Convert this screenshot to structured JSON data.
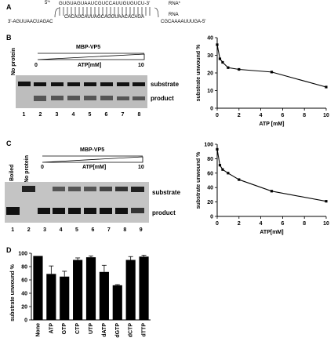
{
  "panel_a": {
    "label": "A",
    "star_marker": "5'*",
    "top_strand": "GUGUAGUAAUCGUCCAUUGUGUCU-3'",
    "top_strand_label": "RNA*",
    "bottom_left": "3'-AGUUAACUAGAC",
    "bottom_middle": "CACAUCAUUAGCAGGUAACACAGA",
    "bottom_right": "CGCAAAAUUUGA-5'",
    "bottom_strand_label": "RNA"
  },
  "panel_b": {
    "label": "B",
    "no_protein": "No protein",
    "protein": "MBP-VP5",
    "scale_start": "0",
    "scale_axis": "ATP[mM]",
    "scale_end": "10",
    "band_top": "substrate",
    "band_bottom": "product",
    "lanes": [
      "1",
      "2",
      "3",
      "4",
      "5",
      "6",
      "7",
      "8"
    ]
  },
  "panel_c": {
    "label": "C",
    "boiled": "Boiled",
    "no_protein": "No protein",
    "protein": "MBP-VP5",
    "scale_start": "0",
    "scale_axis": "ATP[mM]",
    "scale_end": "10",
    "band_top": "substrate",
    "band_bottom": "product",
    "lanes": [
      "1",
      "2",
      "3",
      "4",
      "5",
      "6",
      "7",
      "8",
      "9"
    ]
  },
  "panel_d": {
    "label": "D"
  },
  "chart_data": [
    {
      "type": "line",
      "ylabel": "substrate unwound %",
      "xlabel": "ATP [mM]",
      "xlim": [
        0,
        10
      ],
      "ylim": [
        0,
        40
      ],
      "xticks": [
        "0",
        "2",
        "4",
        "6",
        "8",
        "10"
      ],
      "yticks": [
        "0",
        "10",
        "20",
        "30",
        "40"
      ],
      "x": [
        0,
        0.25,
        0.5,
        1,
        2,
        5,
        10
      ],
      "y": [
        36,
        28,
        26,
        23,
        22,
        20.5,
        12
      ]
    },
    {
      "type": "line",
      "ylabel": "substrate unwound %",
      "xlabel": "ATP[mM]",
      "xlim": [
        0,
        10
      ],
      "ylim": [
        0,
        100
      ],
      "xticks": [
        "0",
        "2",
        "4",
        "6",
        "8",
        "10"
      ],
      "yticks": [
        "0",
        "20",
        "40",
        "60",
        "80",
        "100"
      ],
      "x": [
        0,
        0.25,
        0.5,
        1,
        2,
        5,
        10
      ],
      "y": [
        93,
        71,
        65,
        60,
        51,
        35,
        21
      ]
    },
    {
      "type": "bar",
      "ylabel": "substrate unwound %",
      "ylim": [
        0,
        100
      ],
      "yticks": [
        "0",
        "20",
        "40",
        "60",
        "80",
        "100"
      ],
      "categories": [
        "None",
        "ATP",
        "GTP",
        "CTP",
        "UTP",
        "dATP",
        "dGTP",
        "dCTP",
        "dTTP"
      ],
      "values": [
        96,
        69,
        65,
        90,
        94,
        72,
        52,
        90,
        95
      ],
      "errors": [
        0,
        12,
        8,
        3,
        2,
        10,
        1,
        5,
        2
      ]
    }
  ]
}
